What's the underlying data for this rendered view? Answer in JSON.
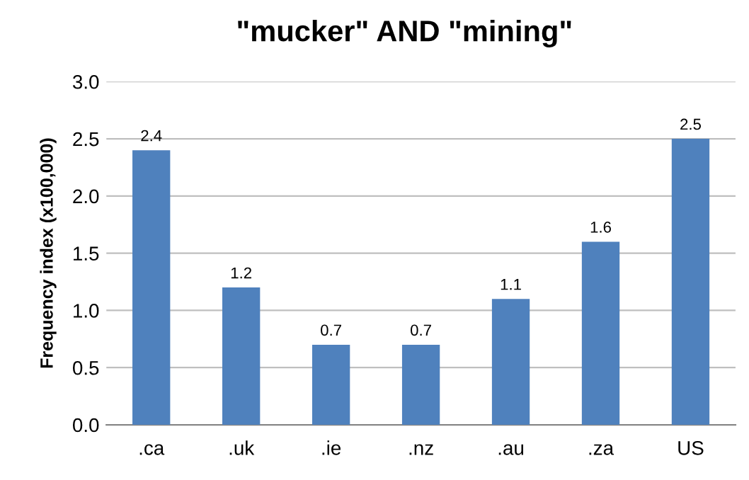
{
  "chart_data": {
    "type": "bar",
    "title": "\"mucker\" AND \"mining\"",
    "ylabel": "Frequency index (x100,000)",
    "categories": [
      ".ca",
      ".uk",
      ".ie",
      ".nz",
      ".au",
      ".za",
      "US"
    ],
    "values": [
      2.4,
      1.2,
      0.7,
      0.7,
      1.1,
      1.6,
      2.5
    ],
    "color": "#4f81bd",
    "ylim": [
      0,
      3
    ],
    "yticks": [
      {
        "value": 0,
        "label": "0.0"
      },
      {
        "value": 0.5,
        "label": "0.5"
      },
      {
        "value": 1,
        "label": "1.0"
      },
      {
        "value": 1.5,
        "label": "1.5"
      },
      {
        "value": 2,
        "label": "2.0"
      },
      {
        "value": 2.5,
        "label": "2.5"
      },
      {
        "value": 3,
        "label": "3.0"
      }
    ],
    "grid": "y",
    "data_labels": true,
    "legend": false
  }
}
